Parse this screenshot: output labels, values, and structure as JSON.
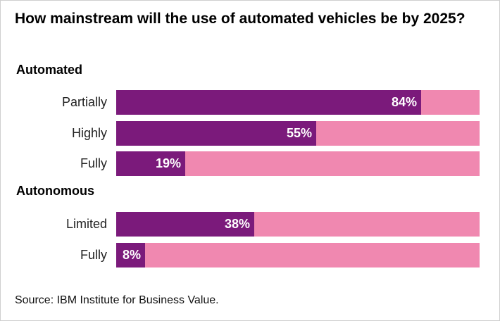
{
  "chart_data": {
    "type": "bar",
    "orientation": "horizontal",
    "stacked_to_100": true,
    "title": "How mainstream will the use of automated vehicles be by 2025?",
    "xlim": [
      0,
      100
    ],
    "groups": [
      {
        "label": "Automated",
        "items": [
          {
            "category": "Partially",
            "value": 84,
            "value_label": "84%"
          },
          {
            "category": "Highly",
            "value": 55,
            "value_label": "55%"
          },
          {
            "category": "Fully",
            "value": 19,
            "value_label": "19%"
          }
        ]
      },
      {
        "label": "Autonomous",
        "items": [
          {
            "category": "Limited",
            "value": 38,
            "value_label": "38%"
          },
          {
            "category": "Fully",
            "value": 8,
            "value_label": "8%"
          }
        ]
      }
    ],
    "colors": {
      "value": "#7b1a7b",
      "remainder": "#f088b0"
    },
    "grid": false,
    "legend": "none"
  },
  "source": "Source: IBM Institute for Business Value."
}
